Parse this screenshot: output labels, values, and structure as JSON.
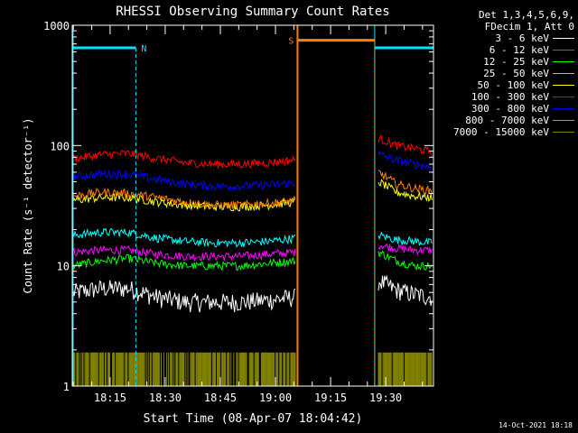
{
  "chart_data": {
    "type": "line",
    "title": "RHESSI Observing Summary Count Rates",
    "xlabel": "Start Time (08-Apr-07 18:04:42)",
    "ylabel": "Count Rate (s⁻¹ detector⁻¹)",
    "yscale": "log",
    "ylim": [
      1,
      1000
    ],
    "xlim": [
      "18:04:42",
      "19:43:00"
    ],
    "x_ticks": [
      "18:15",
      "18:30",
      "18:45",
      "19:00",
      "19:15",
      "19:30"
    ],
    "y_ticks": [
      "1",
      "10",
      "100",
      "1000"
    ],
    "legend_header": [
      "Det 1,3,4,5,6,9,",
      "FDecim 1, Att 0"
    ],
    "legend_position": "top-right",
    "timestamp": "14-Oct-2021 18:18",
    "flags": [
      {
        "label": "N",
        "start": "18:04:42",
        "end": "18:22:00",
        "level": 650,
        "color": "#00e5ff"
      },
      {
        "label": "",
        "start": "19:27:00",
        "end": "19:43:00",
        "level": 650,
        "color": "#00e5ff"
      },
      {
        "label": "S",
        "start": "19:06:00",
        "end": "19:27:00",
        "level": 750,
        "color": "#ff7f00"
      }
    ],
    "data_gap": [
      "19:06:00",
      "19:27:00"
    ],
    "series": [
      {
        "name": "3 - 6 keV",
        "color": "#ffffff",
        "seg1": [
          6.0,
          6.5,
          6.5,
          5.5,
          5.0,
          5.0,
          5.0,
          5.2,
          5.5
        ],
        "seg2": [
          7.5,
          6.3,
          5.8,
          5.5
        ]
      },
      {
        "name": "6 - 12 keV",
        "color": "#ff00ff",
        "seg1": [
          13,
          13.5,
          13.5,
          12.5,
          12,
          12,
          12,
          12.5,
          13
        ],
        "seg2": [
          15,
          14,
          13.5,
          13.5
        ]
      },
      {
        "name": "12 - 25 keV",
        "color": "#00ff00",
        "seg1": [
          10,
          11,
          11.5,
          10.5,
          10,
          10,
          10,
          10.5,
          11
        ],
        "seg2": [
          13,
          11,
          10,
          10
        ]
      },
      {
        "name": "25 - 50 keV",
        "color": "#00ffff",
        "seg1": [
          18,
          19,
          19,
          17,
          16,
          15.5,
          15.5,
          16,
          17
        ],
        "seg2": [
          18,
          16.5,
          16,
          15.5
        ]
      },
      {
        "name": "50 - 100 keV",
        "color": "#ffff00",
        "seg1": [
          35,
          37,
          37,
          34,
          32,
          31,
          31,
          32,
          34
        ],
        "seg2": [
          50,
          41,
          38,
          37
        ]
      },
      {
        "name": "100 - 300 keV",
        "color": "#ff0000",
        "seg1": [
          78,
          84,
          86,
          78,
          72,
          70,
          70,
          72,
          76
        ],
        "seg2": [
          115,
          100,
          95,
          88
        ]
      },
      {
        "name": "300 - 800 keV",
        "color": "#0000ff",
        "seg1": [
          55,
          58,
          58,
          52,
          48,
          46,
          46,
          47,
          49
        ],
        "seg2": [
          85,
          75,
          70,
          66
        ]
      },
      {
        "name": "800 - 7000 keV",
        "color": "#ff7f00",
        "seg1": [
          38,
          41,
          40,
          37,
          34,
          32,
          32,
          33,
          35
        ],
        "seg2": [
          60,
          48,
          44,
          42
        ]
      },
      {
        "name": "7000 - 15000 keV",
        "color": "#808000",
        "seg1": [
          1.9,
          1.9,
          1.9,
          1.9,
          1.9,
          1.9,
          1.9,
          1.9,
          1.9
        ],
        "seg2": [
          1.9,
          1.9,
          1.9,
          1.9
        ]
      }
    ]
  }
}
